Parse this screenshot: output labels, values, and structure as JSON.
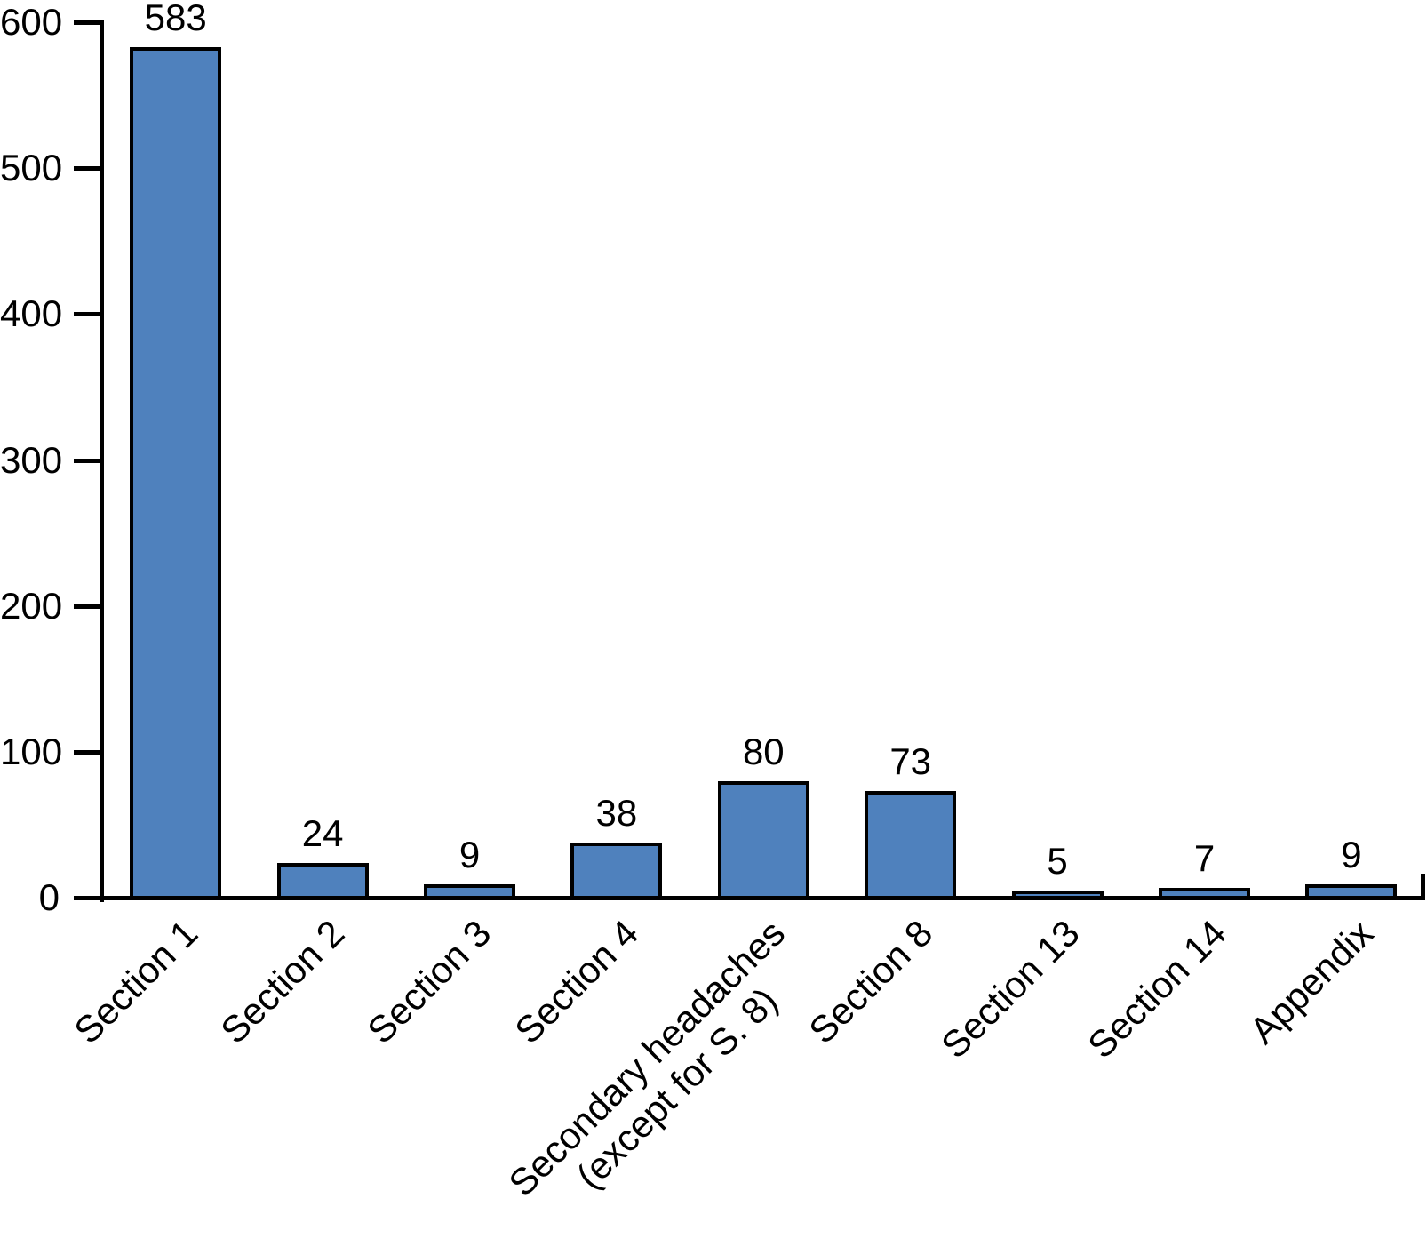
{
  "figure": {
    "background_color": "#FFFFFF",
    "text_color": "#000000"
  },
  "chart_data": {
    "type": "bar",
    "title": "",
    "xlabel": "",
    "ylabel": "",
    "categories": [
      "Section 1",
      "Section 2",
      "Section 3",
      "Section 4",
      "Secondary headaches\n(except for S. 8)",
      "Section 8",
      "Section 13",
      "Section 14",
      "Appendix"
    ],
    "values": [
      583,
      24,
      9,
      38,
      80,
      73,
      5,
      7,
      9
    ],
    "bar_value_labels": [
      "583",
      "24",
      "9",
      "38",
      "80",
      "73",
      "5",
      "7",
      "9"
    ],
    "ylim": [
      0,
      600
    ],
    "y_ticks": [
      0,
      100,
      200,
      300,
      400,
      500,
      600
    ],
    "x_tick_rotation_deg": 45,
    "grid": "off",
    "legend": "none",
    "bar_fill_color": "#4F81BD",
    "bar_border_color": "#000000",
    "axis_color": "#000000"
  }
}
